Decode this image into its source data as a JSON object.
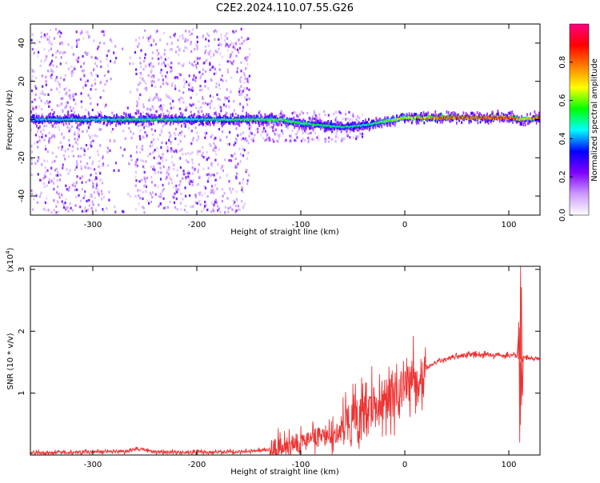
{
  "title": "C2E2.2024.110.07.55.G26",
  "chart_data": [
    {
      "type": "heatmap",
      "xlabel": "Height of straight line (km)",
      "ylabel": "Frequency (Hz)",
      "xlim": [
        -360,
        130
      ],
      "ylim": [
        -50,
        50
      ],
      "xticks": [
        -300,
        -200,
        -100,
        0,
        100
      ],
      "yticks": [
        -40,
        -20,
        0,
        20,
        40
      ],
      "colorbar": {
        "label": "Normalized spectral amplitude",
        "range": [
          0,
          1
        ],
        "ticks": [
          0.0,
          0.2,
          0.4,
          0.6,
          0.8
        ],
        "colors": [
          "#ffffff",
          "#cc99ff",
          "#7f00ff",
          "#0000ff",
          "#00ffff",
          "#00ff00",
          "#ffff00",
          "#ff8000",
          "#ff0000",
          "#ff0080"
        ]
      },
      "scatter_bands": [
        {
          "x0": -360,
          "x1": -290,
          "spread": 48,
          "density": 0.9
        },
        {
          "x0": -290,
          "x1": -260,
          "spread": 48,
          "density": 0.25
        },
        {
          "x0": -260,
          "x1": -150,
          "spread": 48,
          "density": 1.0
        },
        {
          "x0": -150,
          "x1": -40,
          "spread": 8,
          "density": 0.5
        }
      ],
      "ridge": {
        "x": [
          -360,
          -300,
          -250,
          -200,
          -150,
          -120,
          -100,
          -80,
          -60,
          -40,
          -20,
          0,
          20,
          60,
          100,
          110,
          130
        ],
        "freq": [
          0,
          0,
          0,
          0,
          0,
          0,
          -2,
          -3,
          -4,
          -3,
          -1,
          1,
          1,
          1,
          1,
          0,
          1
        ],
        "amplitude": [
          0.45,
          0.5,
          0.55,
          0.5,
          0.55,
          0.6,
          0.55,
          0.5,
          0.5,
          0.45,
          0.6,
          0.7,
          0.75,
          0.85,
          0.9,
          0.7,
          0.8
        ]
      }
    },
    {
      "type": "line",
      "xlabel": "Height of straight line (km)",
      "ylabel": "SNR (10 * v/v)",
      "y_multiplier": "(x10",
      "y_multiplier_exp": "4",
      "y_multiplier_close": ")",
      "xlim": [
        -360,
        130
      ],
      "ylim": [
        0,
        3.05
      ],
      "xticks": [
        -300,
        -200,
        -100,
        0,
        100
      ],
      "yticks": [
        1,
        2,
        3
      ],
      "color": "#ee3333",
      "x": [
        -360,
        -300,
        -270,
        -255,
        -240,
        -200,
        -150,
        -130,
        -120,
        -110,
        -100,
        -90,
        -80,
        -70,
        -60,
        -50,
        -40,
        -30,
        -20,
        -10,
        0,
        5,
        10,
        12,
        15,
        20,
        30,
        40,
        50,
        60,
        80,
        100,
        108,
        110,
        111,
        112,
        113,
        114,
        116,
        120,
        130
      ],
      "y": [
        0.03,
        0.05,
        0.06,
        0.1,
        0.05,
        0.04,
        0.06,
        0.08,
        0.12,
        0.15,
        0.2,
        0.25,
        0.28,
        0.3,
        0.4,
        0.5,
        0.6,
        0.75,
        0.9,
        1.0,
        1.1,
        1.2,
        1.3,
        1.0,
        1.3,
        1.4,
        1.5,
        1.55,
        1.6,
        1.62,
        1.62,
        1.61,
        1.6,
        2.15,
        0.2,
        3.05,
        0.8,
        1.6,
        1.58,
        1.56,
        1.56
      ],
      "noise": [
        {
          "x0": -360,
          "x1": -130,
          "amp": 0.03
        },
        {
          "x0": -130,
          "x1": -60,
          "amp": 0.2
        },
        {
          "x0": -60,
          "x1": 20,
          "amp": 0.45
        },
        {
          "x0": 20,
          "x1": 108,
          "amp": 0.04
        },
        {
          "x0": 114,
          "x1": 130,
          "amp": 0.03
        }
      ]
    }
  ]
}
